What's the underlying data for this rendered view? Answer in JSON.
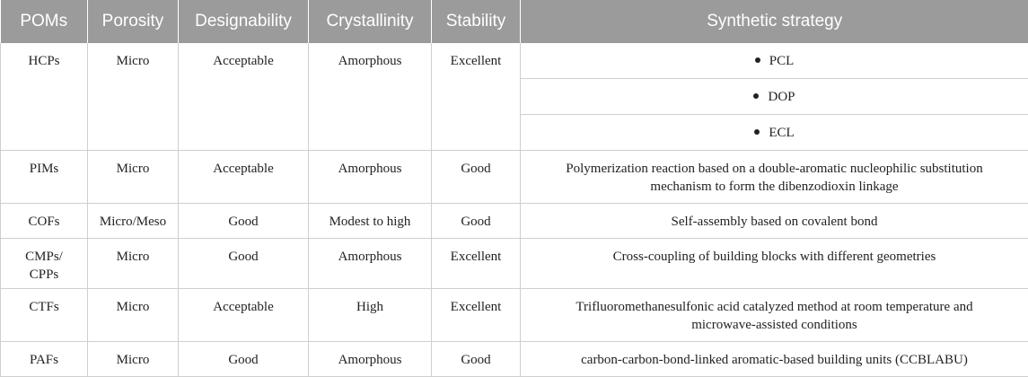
{
  "headers": [
    "POMs",
    "Porosity",
    "Designability",
    "Crystallinity",
    "Stability",
    "Synthetic strategy"
  ],
  "rows": {
    "hcps": {
      "poms": "HCPs",
      "porosity": "Micro",
      "designability": "Acceptable",
      "crystallinity": "Amorphous",
      "stability": "Excellent",
      "strategies": [
        "PCL",
        "DOP",
        "ECL"
      ]
    },
    "pims": {
      "poms": "PIMs",
      "porosity": "Micro",
      "designability": "Acceptable",
      "crystallinity": "Amorphous",
      "stability": "Good",
      "strategy_line1": "Polymerization reaction based on a double-aromatic nucleophilic substitution",
      "strategy_line2": "mechanism to form the dibenzodioxin linkage"
    },
    "cofs": {
      "poms": "COFs",
      "porosity": "Micro/Meso",
      "designability": "Good",
      "crystallinity": "Modest to high",
      "stability": "Good",
      "strategy": "Self-assembly based on covalent bond"
    },
    "cmps": {
      "poms_line1": "CMPs/",
      "poms_line2": "CPPs",
      "porosity": "Micro",
      "designability": "Good",
      "crystallinity": "Amorphous",
      "stability": "Excellent",
      "strategy": "Cross-coupling of building blocks with different geometries"
    },
    "ctfs": {
      "poms": "CTFs",
      "porosity": "Micro",
      "designability": "Acceptable",
      "crystallinity": "High",
      "stability": "Excellent",
      "strategy_line1": "Trifluoromethanesulfonic acid catalyzed method at room temperature and",
      "strategy_line2": "microwave-assisted conditions"
    },
    "pafs": {
      "poms": "PAFs",
      "porosity": "Micro",
      "designability": "Good",
      "crystallinity": "Amorphous",
      "stability": "Good",
      "strategy": "carbon-carbon-bond-linked aromatic-based building units (CCBLABU)"
    }
  }
}
